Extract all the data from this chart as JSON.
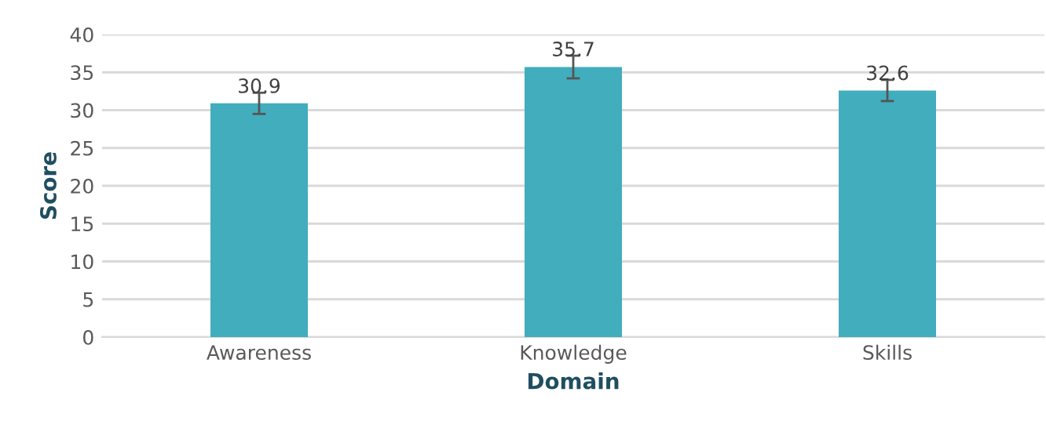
{
  "chart_data": {
    "type": "bar",
    "xlabel": "Domain",
    "ylabel": "Score",
    "categories": [
      "Awareness",
      "Knowledge",
      "Skills"
    ],
    "values": [
      30.9,
      35.7,
      32.6
    ],
    "errors": [
      1.4,
      1.5,
      1.4
    ],
    "color": "#42adbd",
    "ylim": [
      0,
      40
    ],
    "yticks": [
      0,
      5,
      10,
      15,
      20,
      25,
      30,
      35,
      40
    ],
    "grid": "y",
    "data_labels": true
  }
}
